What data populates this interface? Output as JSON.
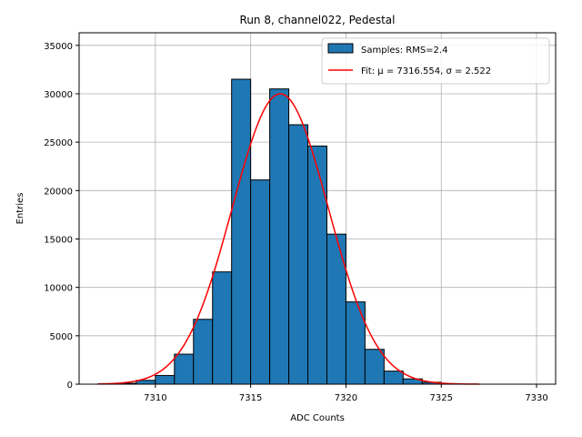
{
  "chart_data": {
    "type": "bar",
    "title": "Run 8, channel022, Pedestal",
    "xlabel": "ADC Counts",
    "ylabel": "Entries",
    "xlim": [
      7306,
      7331
    ],
    "ylim": [
      0,
      36300
    ],
    "xticks": [
      7310,
      7315,
      7320,
      7325,
      7330
    ],
    "yticks": [
      0,
      5000,
      10000,
      15000,
      20000,
      25000,
      30000,
      35000
    ],
    "grid": true,
    "legend_position": "top-right",
    "bin_width": 1,
    "bins": [
      {
        "x0": 7307,
        "count": 50
      },
      {
        "x0": 7308,
        "count": 100
      },
      {
        "x0": 7309,
        "count": 400
      },
      {
        "x0": 7310,
        "count": 900
      },
      {
        "x0": 7311,
        "count": 3100
      },
      {
        "x0": 7312,
        "count": 6700
      },
      {
        "x0": 7313,
        "count": 11600
      },
      {
        "x0": 7314,
        "count": 31500
      },
      {
        "x0": 7315,
        "count": 21100
      },
      {
        "x0": 7316,
        "count": 30500
      },
      {
        "x0": 7317,
        "count": 26800
      },
      {
        "x0": 7318,
        "count": 24600
      },
      {
        "x0": 7319,
        "count": 15500
      },
      {
        "x0": 7320,
        "count": 8500
      },
      {
        "x0": 7321,
        "count": 3600
      },
      {
        "x0": 7322,
        "count": 1350
      },
      {
        "x0": 7323,
        "count": 550
      },
      {
        "x0": 7324,
        "count": 200
      },
      {
        "x0": 7325,
        "count": 50
      }
    ],
    "fit": {
      "mu": 7316.554,
      "sigma": 2.522,
      "amplitude": 30000,
      "x_range": [
        7307,
        7327
      ]
    },
    "series": [
      {
        "name": "Samples: RMS=2.4",
        "kind": "histogram",
        "color": "#1f77b4"
      },
      {
        "name": "Fit: μ = 7316.554, σ = 2.522",
        "kind": "line",
        "color": "#ff0000"
      }
    ]
  },
  "colors": {
    "bar_fill": "#1f77b4",
    "bar_edge": "#000000",
    "fit_line": "#ff0000",
    "grid": "#b0b0b0"
  }
}
